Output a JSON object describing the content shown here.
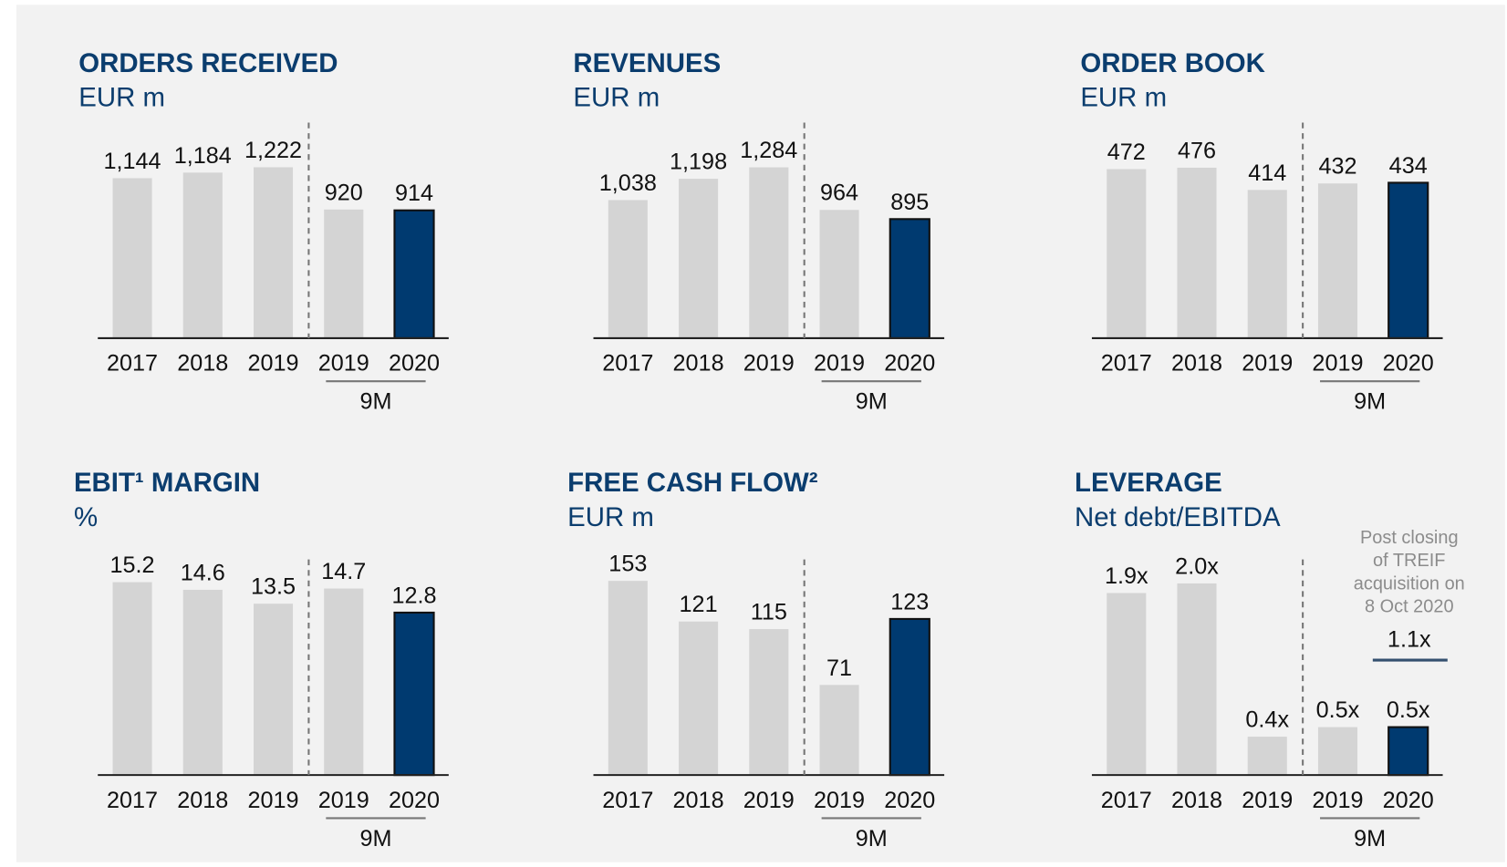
{
  "chart_data": [
    {
      "type": "bar",
      "title": "ORDERS RECEIVED",
      "subtitle": "EUR m",
      "categories": [
        "2017",
        "2018",
        "2019",
        "2019",
        "2020"
      ],
      "period_label": "9M",
      "values": [
        1144,
        1184,
        1222,
        920,
        914
      ],
      "value_labels": [
        "1,144",
        "1,184",
        "1,222",
        "920",
        "914"
      ],
      "colors": [
        "#d4d4d4",
        "#d4d4d4",
        "#d4d4d4",
        "#d4d4d4",
        "#003a70"
      ],
      "ylim": [
        0,
        1370
      ]
    },
    {
      "type": "bar",
      "title": "REVENUES",
      "subtitle": "EUR m",
      "categories": [
        "2017",
        "2018",
        "2019",
        "2019",
        "2020"
      ],
      "period_label": "9M",
      "values": [
        1038,
        1198,
        1284,
        964,
        895
      ],
      "value_labels": [
        "1,038",
        "1,198",
        "1,284",
        "964",
        "895"
      ],
      "colors": [
        "#d4d4d4",
        "#d4d4d4",
        "#d4d4d4",
        "#d4d4d4",
        "#003a70"
      ],
      "ylim": [
        0,
        1440
      ]
    },
    {
      "type": "bar",
      "title": "ORDER BOOK",
      "subtitle": "EUR m",
      "categories": [
        "2017",
        "2018",
        "2019",
        "2019",
        "2020"
      ],
      "period_label": "9M",
      "values": [
        472,
        476,
        414,
        432,
        434
      ],
      "colors": [
        "#d4d4d4",
        "#d4d4d4",
        "#d4d4d4",
        "#d4d4d4",
        "#003a70"
      ],
      "ylim": [
        0,
        535
      ]
    },
    {
      "type": "bar",
      "title": "EBIT¹ MARGIN",
      "subtitle": "%",
      "categories": [
        "2017",
        "2018",
        "2019",
        "2019",
        "2020"
      ],
      "period_label": "9M",
      "values": [
        15.2,
        14.6,
        13.5,
        14.7,
        12.8
      ],
      "colors": [
        "#d4d4d4",
        "#d4d4d4",
        "#d4d4d4",
        "#d4d4d4",
        "#003a70"
      ],
      "ylim": [
        0,
        15.1
      ]
    },
    {
      "type": "bar",
      "title": "FREE CASH FLOW²",
      "subtitle": "EUR m",
      "categories": [
        "2017",
        "2018",
        "2019",
        "2019",
        "2020"
      ],
      "period_label": "9M",
      "values": [
        153,
        121,
        115,
        71,
        123
      ],
      "colors": [
        "#d4d4d4",
        "#d4d4d4",
        "#d4d4d4",
        "#d4d4d4",
        "#003a70"
      ],
      "ylim": [
        0,
        151
      ]
    },
    {
      "type": "bar",
      "title": "LEVERAGE",
      "subtitle": "Net debt/EBITDA",
      "categories": [
        "2017",
        "2018",
        "2019",
        "2019",
        "2020"
      ],
      "period_label": "9M",
      "values": [
        1.9,
        2.0,
        0.4,
        0.5,
        0.5
      ],
      "value_labels": [
        "1.9x",
        "2.0x",
        "0.4x",
        "0.5x",
        "0.5x"
      ],
      "colors": [
        "#d4d4d4",
        "#d4d4d4",
        "#d4d4d4",
        "#d4d4d4",
        "#003a70"
      ],
      "ylim": [
        0,
        2.0
      ],
      "annotation": {
        "lines": [
          "Post closing",
          "of TREIF",
          "acquisition on",
          "8 Oct 2020"
        ],
        "value": 1.1,
        "label": "1.1x"
      }
    }
  ]
}
